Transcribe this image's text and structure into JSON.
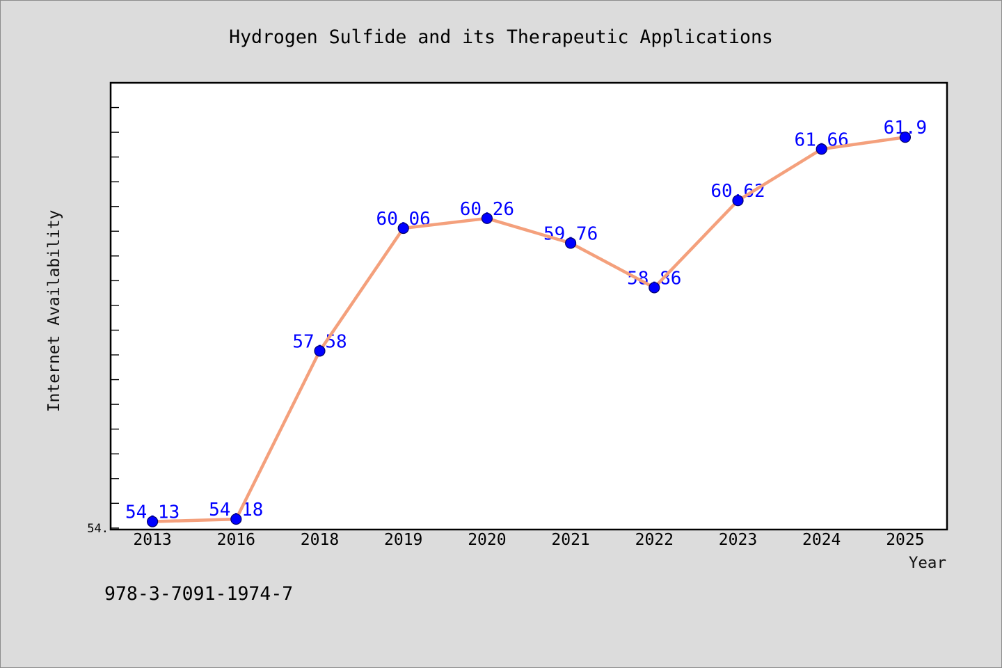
{
  "page": {
    "background_color": "#dcdcdc",
    "border_color": "#8c8c8c"
  },
  "chart_data": {
    "type": "line",
    "title": "Hydrogen Sulfide and its Therapeutic Applications",
    "xlabel": "Year",
    "ylabel": "Internet Availability",
    "categories": [
      "2013",
      "2016",
      "2018",
      "2019",
      "2020",
      "2021",
      "2022",
      "2023",
      "2024",
      "2025"
    ],
    "series": [
      {
        "values": [
          54.13,
          54.18,
          57.58,
          60.06,
          60.26,
          59.76,
          58.86,
          60.62,
          61.66,
          61.9
        ],
        "line_color": "#f4a07c",
        "marker_color": "#0000ff",
        "marker_edge_color": "#000066",
        "label_color": "#0000ff",
        "data_labels": true
      }
    ],
    "ylim": [
      53.97,
      63.0
    ],
    "y_tick_step": 0.5,
    "y_tick_labels": [
      {
        "value": 54.0,
        "label": "54."
      }
    ],
    "grid": false,
    "plot_background": "#ffffff",
    "axis_color": "#000000"
  },
  "footer_text": "978-3-7091-1974-7"
}
